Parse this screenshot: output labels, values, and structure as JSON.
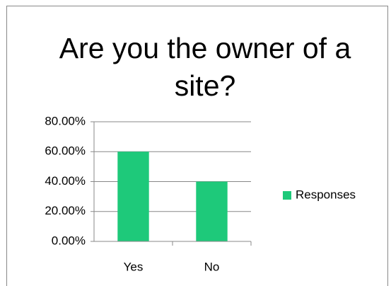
{
  "chart_data": {
    "type": "bar",
    "title": "Are you the owner of a site?",
    "categories": [
      "Yes",
      "No"
    ],
    "series": [
      {
        "name": "Responses",
        "color": "#1ec97a",
        "values": [
          60,
          40
        ]
      }
    ],
    "ylim": [
      0,
      80
    ],
    "yticks": [
      {
        "value": 0,
        "label": "0.00%"
      },
      {
        "value": 20,
        "label": "20.00%"
      },
      {
        "value": 40,
        "label": "40.00%"
      },
      {
        "value": 60,
        "label": "60.00%"
      },
      {
        "value": 80,
        "label": "80.00%"
      }
    ],
    "grid": true,
    "legend": "right"
  }
}
